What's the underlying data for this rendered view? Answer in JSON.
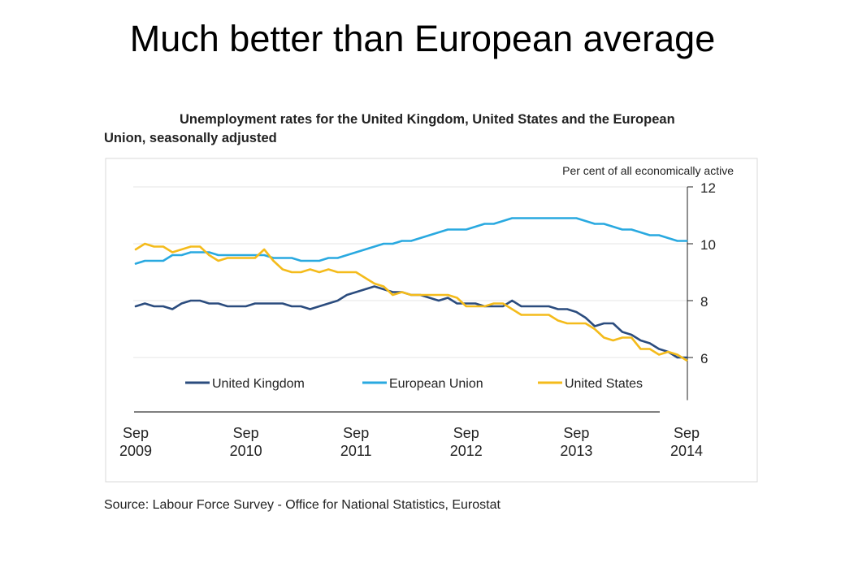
{
  "slide": {
    "title": "Much better than European average"
  },
  "chart_data": {
    "type": "line",
    "title_line1": "Unemployment rates for the United Kingdom, United States and the European",
    "title_line2": "Union, seasonally adjusted",
    "unit_label": "Per cent of all economically active",
    "source": "Source: Labour Force Survey - Office for National Statistics, Eurostat",
    "y_axis_side": "right",
    "ylim": [
      4.5,
      12
    ],
    "yticks": [
      6,
      8,
      10,
      12
    ],
    "grid": true,
    "legend_position": "bottom",
    "x_start": "Sep 2009",
    "x_end": "Sep 2014",
    "x_ticks": [
      {
        "month": "Sep",
        "year": "2009"
      },
      {
        "month": "Sep",
        "year": "2010"
      },
      {
        "month": "Sep",
        "year": "2011"
      },
      {
        "month": "Sep",
        "year": "2012"
      },
      {
        "month": "Sep",
        "year": "2013"
      },
      {
        "month": "Sep",
        "year": "2014"
      }
    ],
    "series": [
      {
        "name": "United Kingdom",
        "color": "#2b4c7e",
        "values": [
          7.8,
          7.9,
          7.8,
          7.8,
          7.7,
          7.9,
          8.0,
          8.0,
          7.9,
          7.9,
          7.8,
          7.8,
          7.8,
          7.9,
          7.9,
          7.9,
          7.9,
          7.8,
          7.8,
          7.7,
          7.8,
          7.9,
          8.0,
          8.2,
          8.3,
          8.4,
          8.5,
          8.4,
          8.3,
          8.3,
          8.2,
          8.2,
          8.1,
          8.0,
          8.1,
          7.9,
          7.9,
          7.9,
          7.8,
          7.8,
          7.8,
          8.0,
          7.8,
          7.8,
          7.8,
          7.8,
          7.7,
          7.7,
          7.6,
          7.4,
          7.1,
          7.2,
          7.2,
          6.9,
          6.8,
          6.6,
          6.5,
          6.3,
          6.2,
          6.0,
          6.0
        ]
      },
      {
        "name": "European Union",
        "color": "#29a9e0",
        "values": [
          9.3,
          9.4,
          9.4,
          9.4,
          9.6,
          9.6,
          9.7,
          9.7,
          9.7,
          9.6,
          9.6,
          9.6,
          9.6,
          9.6,
          9.6,
          9.5,
          9.5,
          9.5,
          9.4,
          9.4,
          9.4,
          9.5,
          9.5,
          9.6,
          9.7,
          9.8,
          9.9,
          10.0,
          10.0,
          10.1,
          10.1,
          10.2,
          10.3,
          10.4,
          10.5,
          10.5,
          10.5,
          10.6,
          10.7,
          10.7,
          10.8,
          10.9,
          10.9,
          10.9,
          10.9,
          10.9,
          10.9,
          10.9,
          10.9,
          10.8,
          10.7,
          10.7,
          10.6,
          10.5,
          10.5,
          10.4,
          10.3,
          10.3,
          10.2,
          10.1,
          10.1
        ]
      },
      {
        "name": "United States",
        "color": "#f4bb1b",
        "values": [
          9.8,
          10.0,
          9.9,
          9.9,
          9.7,
          9.8,
          9.9,
          9.9,
          9.6,
          9.4,
          9.5,
          9.5,
          9.5,
          9.5,
          9.8,
          9.4,
          9.1,
          9.0,
          9.0,
          9.1,
          9.0,
          9.1,
          9.0,
          9.0,
          9.0,
          8.8,
          8.6,
          8.5,
          8.2,
          8.3,
          8.2,
          8.2,
          8.2,
          8.2,
          8.2,
          8.1,
          7.8,
          7.8,
          7.8,
          7.9,
          7.9,
          7.7,
          7.5,
          7.5,
          7.5,
          7.5,
          7.3,
          7.2,
          7.2,
          7.2,
          7.0,
          6.7,
          6.6,
          6.7,
          6.7,
          6.3,
          6.3,
          6.1,
          6.2,
          6.1,
          5.9
        ]
      }
    ]
  }
}
